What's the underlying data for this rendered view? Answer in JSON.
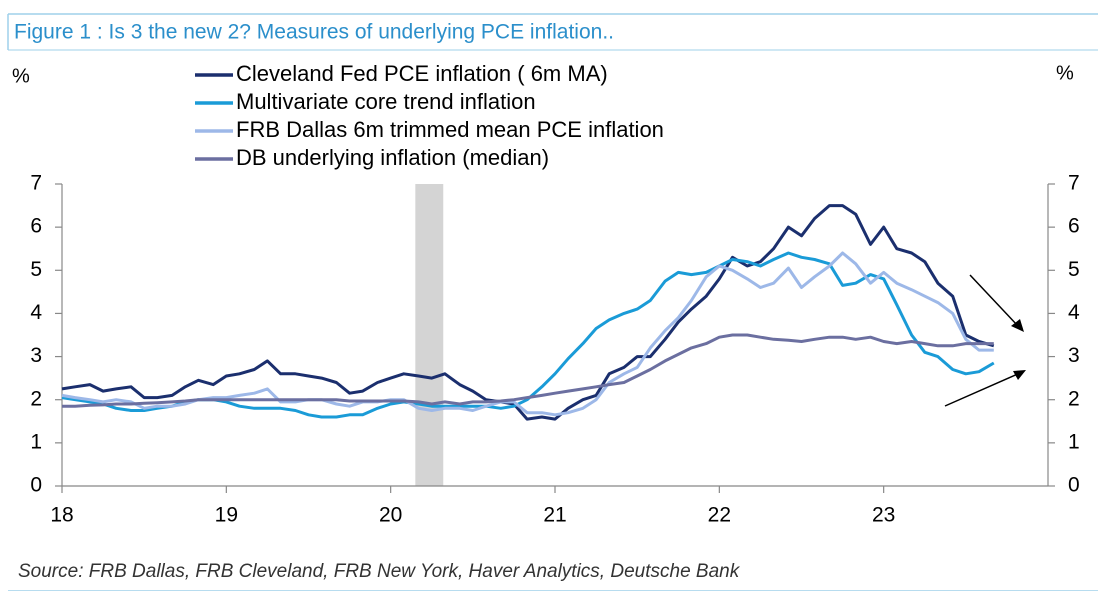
{
  "chart_data": {
    "type": "line",
    "title": "Figure 1 : Is 3 the new 2? Measures of underlying PCE inflation..",
    "ylabel": "%",
    "y2label": "%",
    "source": "Source: FRB Dallas, FRB Cleveland, FRB New York, Haver Analytics, Deutsche Bank",
    "xlim": [
      18,
      24
    ],
    "xticks": [
      18,
      19,
      20,
      21,
      22,
      23
    ],
    "ylim": [
      0,
      7
    ],
    "yticks": [
      0,
      1,
      2,
      3,
      4,
      5,
      6,
      7
    ],
    "shaded_regions": [
      [
        20.15,
        20.32
      ]
    ],
    "x": [
      18,
      18.08,
      18.17,
      18.25,
      18.33,
      18.42,
      18.5,
      18.58,
      18.67,
      18.75,
      18.83,
      18.92,
      19,
      19.08,
      19.17,
      19.25,
      19.33,
      19.42,
      19.5,
      19.58,
      19.67,
      19.75,
      19.83,
      19.92,
      20,
      20.08,
      20.17,
      20.25,
      20.33,
      20.42,
      20.5,
      20.58,
      20.67,
      20.75,
      20.83,
      20.92,
      21,
      21.08,
      21.17,
      21.25,
      21.33,
      21.42,
      21.5,
      21.58,
      21.67,
      21.75,
      21.83,
      21.92,
      22,
      22.08,
      22.17,
      22.25,
      22.33,
      22.42,
      22.5,
      22.58,
      22.67,
      22.75,
      22.83,
      22.92,
      23,
      23.08,
      23.17,
      23.25,
      23.33,
      23.42,
      23.5,
      23.58,
      23.67
    ],
    "series": [
      {
        "name": "Cleveland Fed PCE inflation ( 6m MA)",
        "color": "#1b2f6e",
        "values": [
          2.25,
          2.3,
          2.35,
          2.2,
          2.25,
          2.3,
          2.05,
          2.05,
          2.1,
          2.3,
          2.45,
          2.35,
          2.55,
          2.6,
          2.7,
          2.9,
          2.6,
          2.6,
          2.55,
          2.5,
          2.4,
          2.15,
          2.2,
          2.4,
          2.5,
          2.6,
          2.55,
          2.5,
          2.6,
          2.35,
          2.2,
          2.0,
          1.95,
          1.9,
          1.55,
          1.6,
          1.55,
          1.8,
          2.0,
          2.1,
          2.6,
          2.75,
          3.0,
          3.0,
          3.4,
          3.8,
          4.1,
          4.4,
          4.8,
          5.3,
          5.1,
          5.2,
          5.5,
          6.0,
          5.8,
          6.2,
          6.5,
          6.5,
          6.3,
          5.6,
          6.0,
          5.5,
          5.4,
          5.2,
          4.7,
          4.4,
          3.5,
          3.35,
          3.25
        ]
      },
      {
        "name": "Multivariate core trend inflation",
        "color": "#1a9bd7",
        "values": [
          2.05,
          2.0,
          1.95,
          1.9,
          1.8,
          1.75,
          1.75,
          1.8,
          1.85,
          1.95,
          2.0,
          2.0,
          1.95,
          1.85,
          1.8,
          1.8,
          1.8,
          1.75,
          1.65,
          1.6,
          1.6,
          1.65,
          1.65,
          1.8,
          1.9,
          1.95,
          1.9,
          1.85,
          1.85,
          1.85,
          1.85,
          1.85,
          1.8,
          1.85,
          2.0,
          2.3,
          2.6,
          2.95,
          3.3,
          3.65,
          3.85,
          4.0,
          4.1,
          4.3,
          4.75,
          4.95,
          4.9,
          4.95,
          5.1,
          5.25,
          5.2,
          5.1,
          5.25,
          5.4,
          5.3,
          5.25,
          5.15,
          4.65,
          4.7,
          4.9,
          4.8,
          4.2,
          3.5,
          3.1,
          3.0,
          2.7,
          2.6,
          2.65,
          2.85
        ]
      },
      {
        "name": "FRB Dallas 6m trimmed mean PCE inflation",
        "color": "#9db8e8",
        "values": [
          2.1,
          2.05,
          2.0,
          1.95,
          2.0,
          1.95,
          1.8,
          1.85,
          1.85,
          1.9,
          2.0,
          2.05,
          2.05,
          2.1,
          2.15,
          2.25,
          1.95,
          1.95,
          2.0,
          2.0,
          1.9,
          1.85,
          1.95,
          1.95,
          2.0,
          2.0,
          1.8,
          1.75,
          1.8,
          1.8,
          1.75,
          1.85,
          1.95,
          1.95,
          1.7,
          1.7,
          1.65,
          1.7,
          1.8,
          2.0,
          2.4,
          2.6,
          2.75,
          3.2,
          3.6,
          3.9,
          4.3,
          4.85,
          5.1,
          5.0,
          4.8,
          4.6,
          4.7,
          5.05,
          4.6,
          4.85,
          5.1,
          5.4,
          5.15,
          4.7,
          4.95,
          4.7,
          4.55,
          4.4,
          4.25,
          4.0,
          3.4,
          3.15,
          3.15
        ]
      },
      {
        "name": "DB underlying inflation (median)",
        "color": "#6b6fa0",
        "values": [
          1.85,
          1.85,
          1.87,
          1.88,
          1.9,
          1.9,
          1.92,
          1.93,
          1.95,
          1.97,
          2.0,
          2.0,
          2.0,
          2.0,
          2.0,
          2.0,
          2.0,
          2.0,
          2.0,
          2.0,
          2.0,
          1.97,
          1.97,
          1.97,
          1.97,
          1.97,
          1.95,
          1.9,
          1.95,
          1.9,
          1.95,
          1.95,
          1.97,
          2.0,
          2.05,
          2.1,
          2.15,
          2.2,
          2.25,
          2.3,
          2.35,
          2.4,
          2.55,
          2.7,
          2.9,
          3.05,
          3.2,
          3.3,
          3.45,
          3.5,
          3.5,
          3.45,
          3.4,
          3.38,
          3.35,
          3.4,
          3.45,
          3.45,
          3.4,
          3.45,
          3.35,
          3.3,
          3.35,
          3.3,
          3.25,
          3.25,
          3.3,
          3.3,
          3.3
        ]
      }
    ]
  }
}
